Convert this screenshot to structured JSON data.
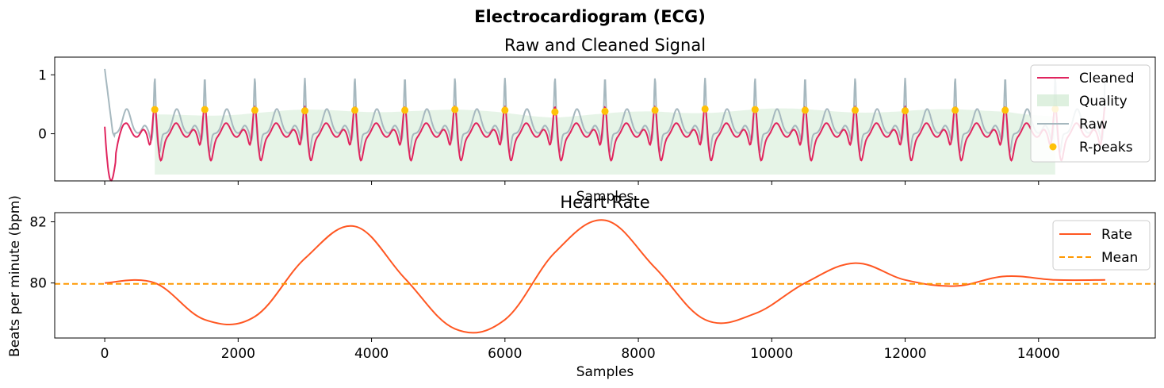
{
  "figure": {
    "title": "Electrocardiogram (ECG)"
  },
  "chart_data": [
    {
      "type": "line",
      "title": "Raw and Cleaned Signal",
      "xlabel": "Samples",
      "ylabel": "",
      "xlim": [
        -750,
        15750
      ],
      "ylim": [
        -0.8,
        1.3
      ],
      "yticks": [
        0,
        1
      ],
      "xticks": [
        0,
        2000,
        4000,
        6000,
        8000,
        10000,
        12000,
        14000
      ],
      "show_xtick_labels": false,
      "grid": false,
      "legend": "top-right",
      "colors": {
        "cleaned": "#E0245E",
        "quality": "#C8E6C9",
        "raw": "#A6B8BF",
        "rpeaks": "#FFC107"
      },
      "series": [
        {
          "name": "Cleaned",
          "style": "line"
        },
        {
          "name": "Quality",
          "style": "area",
          "x": [
            750,
            1500,
            2250,
            3000,
            3750,
            4500,
            5250,
            6000,
            6750,
            7500,
            8250,
            9000,
            9750,
            10500,
            11250,
            12000,
            12750,
            13500,
            14250
          ],
          "values": [
            0.3,
            0.33,
            0.36,
            0.38,
            0.39,
            0.4,
            0.38,
            0.36,
            0.3,
            0.32,
            0.37,
            0.38,
            0.4,
            0.4,
            0.39,
            0.38,
            0.39,
            0.4,
            0.3
          ]
        },
        {
          "name": "Raw",
          "style": "line"
        },
        {
          "name": "R-peaks",
          "style": "scatter",
          "x": [
            750,
            1500,
            2250,
            3000,
            3750,
            4500,
            5250,
            6000,
            6750,
            7500,
            8250,
            9000,
            9750,
            10500,
            11250,
            12000,
            12750,
            13500,
            14250
          ],
          "values": [
            0.41,
            0.41,
            0.4,
            0.39,
            0.4,
            0.4,
            0.41,
            0.4,
            0.37,
            0.38,
            0.4,
            0.42,
            0.41,
            0.4,
            0.4,
            0.39,
            0.4,
            0.4,
            0.42
          ]
        }
      ]
    },
    {
      "type": "line",
      "title": "Heart Rate",
      "xlabel": "Samples",
      "ylabel": "Beats per minute (bpm)",
      "xlim": [
        -750,
        15750
      ],
      "ylim": [
        78.2,
        82.3
      ],
      "yticks": [
        80,
        82
      ],
      "xticks": [
        0,
        2000,
        4000,
        6000,
        8000,
        10000,
        12000,
        14000
      ],
      "grid": false,
      "legend": "top-right",
      "colors": {
        "rate": "#FF5722",
        "mean": "#FF9800"
      },
      "series": [
        {
          "name": "Rate",
          "style": "line",
          "x": [
            0,
            750,
            1500,
            2250,
            3000,
            3750,
            4500,
            5250,
            6000,
            6750,
            7500,
            8250,
            9000,
            9750,
            10500,
            11250,
            12000,
            12750,
            13500,
            14250,
            15000
          ],
          "values": [
            80.0,
            80.0,
            78.8,
            78.9,
            80.8,
            81.85,
            80.15,
            78.5,
            78.8,
            81.0,
            82.05,
            80.5,
            78.8,
            79.0,
            80.0,
            80.65,
            80.1,
            79.9,
            80.22,
            80.1,
            80.1
          ]
        },
        {
          "name": "Mean",
          "style": "dashed",
          "value": 79.97
        }
      ]
    }
  ]
}
